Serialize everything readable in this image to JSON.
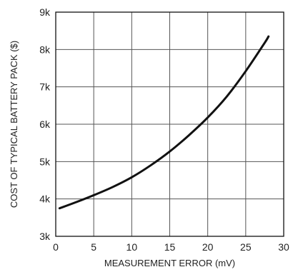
{
  "chart_data": {
    "type": "line",
    "xlabel": "MEASUREMENT ERROR (mV)",
    "ylabel": "COST OF TYPICAL BATTERY PACK ($)",
    "xlim": [
      0,
      30
    ],
    "ylim": [
      3000,
      9000
    ],
    "x_ticks": [
      0,
      5,
      10,
      15,
      20,
      25,
      30
    ],
    "x_tick_labels": [
      "0",
      "5",
      "10",
      "15",
      "20",
      "25",
      "30"
    ],
    "y_ticks": [
      3000,
      4000,
      5000,
      6000,
      7000,
      8000,
      9000
    ],
    "y_tick_labels": [
      "3k",
      "4k",
      "5k",
      "6k",
      "7k",
      "8k",
      "9k"
    ],
    "grid": true,
    "series": [
      {
        "x": [
          0.5,
          2.5,
          5,
          7.5,
          10,
          12.5,
          15,
          17.5,
          20,
          22.5,
          25,
          27.5,
          28
        ],
        "y": [
          3750,
          3900,
          4100,
          4320,
          4580,
          4900,
          5270,
          5700,
          6180,
          6740,
          7420,
          8180,
          8350
        ],
        "color": "#111111"
      }
    ]
  }
}
